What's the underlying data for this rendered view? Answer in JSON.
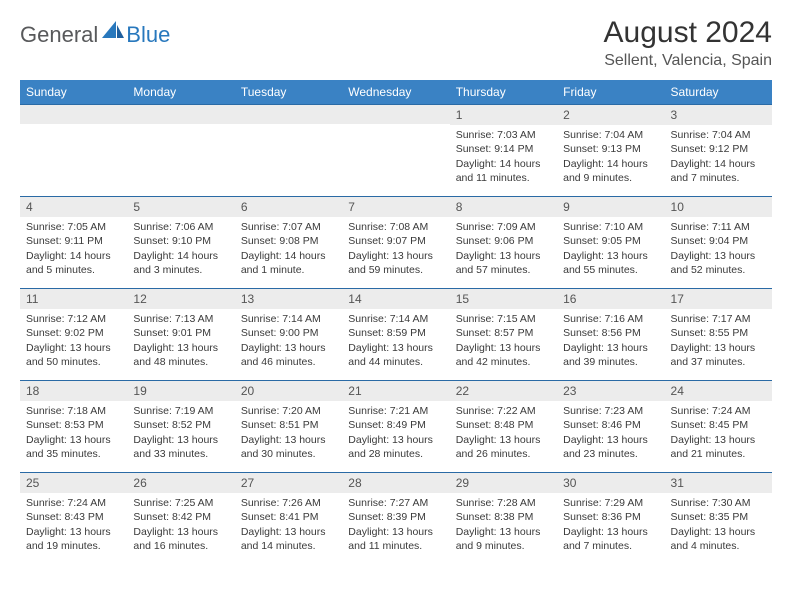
{
  "brand": {
    "text1": "General",
    "text2": "Blue"
  },
  "title": "August 2024",
  "location": "Sellent, Valencia, Spain",
  "colors": {
    "header_bg": "#3a82c4",
    "header_text": "#ffffff",
    "row_border": "#2a6aa5",
    "daynum_bg": "#ececec",
    "body_text": "#3a3a3a",
    "brand_gray": "#58595b",
    "brand_blue": "#2878bd"
  },
  "day_headers": [
    "Sunday",
    "Monday",
    "Tuesday",
    "Wednesday",
    "Thursday",
    "Friday",
    "Saturday"
  ],
  "weeks": [
    [
      {
        "n": "",
        "lines": []
      },
      {
        "n": "",
        "lines": []
      },
      {
        "n": "",
        "lines": []
      },
      {
        "n": "",
        "lines": []
      },
      {
        "n": "1",
        "lines": [
          "Sunrise: 7:03 AM",
          "Sunset: 9:14 PM",
          "Daylight: 14 hours",
          "and 11 minutes."
        ]
      },
      {
        "n": "2",
        "lines": [
          "Sunrise: 7:04 AM",
          "Sunset: 9:13 PM",
          "Daylight: 14 hours",
          "and 9 minutes."
        ]
      },
      {
        "n": "3",
        "lines": [
          "Sunrise: 7:04 AM",
          "Sunset: 9:12 PM",
          "Daylight: 14 hours",
          "and 7 minutes."
        ]
      }
    ],
    [
      {
        "n": "4",
        "lines": [
          "Sunrise: 7:05 AM",
          "Sunset: 9:11 PM",
          "Daylight: 14 hours",
          "and 5 minutes."
        ]
      },
      {
        "n": "5",
        "lines": [
          "Sunrise: 7:06 AM",
          "Sunset: 9:10 PM",
          "Daylight: 14 hours",
          "and 3 minutes."
        ]
      },
      {
        "n": "6",
        "lines": [
          "Sunrise: 7:07 AM",
          "Sunset: 9:08 PM",
          "Daylight: 14 hours",
          "and 1 minute."
        ]
      },
      {
        "n": "7",
        "lines": [
          "Sunrise: 7:08 AM",
          "Sunset: 9:07 PM",
          "Daylight: 13 hours",
          "and 59 minutes."
        ]
      },
      {
        "n": "8",
        "lines": [
          "Sunrise: 7:09 AM",
          "Sunset: 9:06 PM",
          "Daylight: 13 hours",
          "and 57 minutes."
        ]
      },
      {
        "n": "9",
        "lines": [
          "Sunrise: 7:10 AM",
          "Sunset: 9:05 PM",
          "Daylight: 13 hours",
          "and 55 minutes."
        ]
      },
      {
        "n": "10",
        "lines": [
          "Sunrise: 7:11 AM",
          "Sunset: 9:04 PM",
          "Daylight: 13 hours",
          "and 52 minutes."
        ]
      }
    ],
    [
      {
        "n": "11",
        "lines": [
          "Sunrise: 7:12 AM",
          "Sunset: 9:02 PM",
          "Daylight: 13 hours",
          "and 50 minutes."
        ]
      },
      {
        "n": "12",
        "lines": [
          "Sunrise: 7:13 AM",
          "Sunset: 9:01 PM",
          "Daylight: 13 hours",
          "and 48 minutes."
        ]
      },
      {
        "n": "13",
        "lines": [
          "Sunrise: 7:14 AM",
          "Sunset: 9:00 PM",
          "Daylight: 13 hours",
          "and 46 minutes."
        ]
      },
      {
        "n": "14",
        "lines": [
          "Sunrise: 7:14 AM",
          "Sunset: 8:59 PM",
          "Daylight: 13 hours",
          "and 44 minutes."
        ]
      },
      {
        "n": "15",
        "lines": [
          "Sunrise: 7:15 AM",
          "Sunset: 8:57 PM",
          "Daylight: 13 hours",
          "and 42 minutes."
        ]
      },
      {
        "n": "16",
        "lines": [
          "Sunrise: 7:16 AM",
          "Sunset: 8:56 PM",
          "Daylight: 13 hours",
          "and 39 minutes."
        ]
      },
      {
        "n": "17",
        "lines": [
          "Sunrise: 7:17 AM",
          "Sunset: 8:55 PM",
          "Daylight: 13 hours",
          "and 37 minutes."
        ]
      }
    ],
    [
      {
        "n": "18",
        "lines": [
          "Sunrise: 7:18 AM",
          "Sunset: 8:53 PM",
          "Daylight: 13 hours",
          "and 35 minutes."
        ]
      },
      {
        "n": "19",
        "lines": [
          "Sunrise: 7:19 AM",
          "Sunset: 8:52 PM",
          "Daylight: 13 hours",
          "and 33 minutes."
        ]
      },
      {
        "n": "20",
        "lines": [
          "Sunrise: 7:20 AM",
          "Sunset: 8:51 PM",
          "Daylight: 13 hours",
          "and 30 minutes."
        ]
      },
      {
        "n": "21",
        "lines": [
          "Sunrise: 7:21 AM",
          "Sunset: 8:49 PM",
          "Daylight: 13 hours",
          "and 28 minutes."
        ]
      },
      {
        "n": "22",
        "lines": [
          "Sunrise: 7:22 AM",
          "Sunset: 8:48 PM",
          "Daylight: 13 hours",
          "and 26 minutes."
        ]
      },
      {
        "n": "23",
        "lines": [
          "Sunrise: 7:23 AM",
          "Sunset: 8:46 PM",
          "Daylight: 13 hours",
          "and 23 minutes."
        ]
      },
      {
        "n": "24",
        "lines": [
          "Sunrise: 7:24 AM",
          "Sunset: 8:45 PM",
          "Daylight: 13 hours",
          "and 21 minutes."
        ]
      }
    ],
    [
      {
        "n": "25",
        "lines": [
          "Sunrise: 7:24 AM",
          "Sunset: 8:43 PM",
          "Daylight: 13 hours",
          "and 19 minutes."
        ]
      },
      {
        "n": "26",
        "lines": [
          "Sunrise: 7:25 AM",
          "Sunset: 8:42 PM",
          "Daylight: 13 hours",
          "and 16 minutes."
        ]
      },
      {
        "n": "27",
        "lines": [
          "Sunrise: 7:26 AM",
          "Sunset: 8:41 PM",
          "Daylight: 13 hours",
          "and 14 minutes."
        ]
      },
      {
        "n": "28",
        "lines": [
          "Sunrise: 7:27 AM",
          "Sunset: 8:39 PM",
          "Daylight: 13 hours",
          "and 11 minutes."
        ]
      },
      {
        "n": "29",
        "lines": [
          "Sunrise: 7:28 AM",
          "Sunset: 8:38 PM",
          "Daylight: 13 hours",
          "and 9 minutes."
        ]
      },
      {
        "n": "30",
        "lines": [
          "Sunrise: 7:29 AM",
          "Sunset: 8:36 PM",
          "Daylight: 13 hours",
          "and 7 minutes."
        ]
      },
      {
        "n": "31",
        "lines": [
          "Sunrise: 7:30 AM",
          "Sunset: 8:35 PM",
          "Daylight: 13 hours",
          "and 4 minutes."
        ]
      }
    ]
  ]
}
